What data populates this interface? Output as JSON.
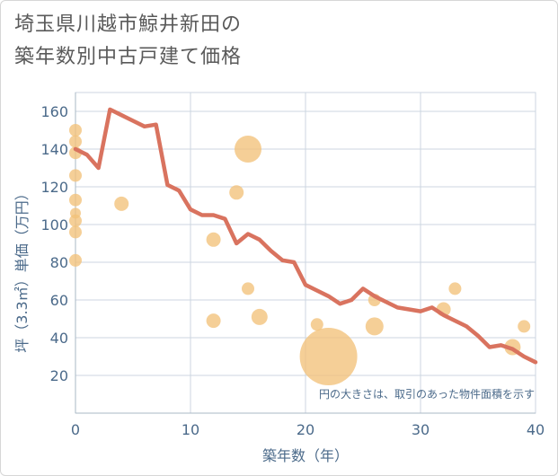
{
  "title_line1": "埼玉県川越市鯨井新田の",
  "title_line2": "築年数別中古戸建て価格",
  "chart_data": {
    "type": "scatter+line",
    "title": "埼玉県川越市鯨井新田の築年数別中古戸建て価格",
    "xlabel": "築年数（年）",
    "ylabel": "坪（3.3㎡）単価（万円）",
    "xlim": [
      0,
      40
    ],
    "ylim": [
      0,
      170
    ],
    "xticks": [
      0,
      10,
      20,
      30,
      40
    ],
    "yticks": [
      20,
      40,
      60,
      80,
      100,
      120,
      140,
      160
    ],
    "note": "円の大きさは、取引のあった物件面積を示す",
    "colors": {
      "line": "#d9735f",
      "bubble": "#f2c27a",
      "grid": "#ccd6e0",
      "text": "#4b6a8a"
    },
    "line": {
      "x": [
        0,
        1,
        2,
        3,
        4,
        5,
        6,
        7,
        8,
        9,
        10,
        11,
        12,
        13,
        14,
        15,
        16,
        17,
        18,
        19,
        20,
        21,
        22,
        23,
        24,
        25,
        26,
        27,
        28,
        29,
        30,
        31,
        32,
        33,
        34,
        35,
        36,
        37,
        38,
        39,
        40
      ],
      "y": [
        140,
        137,
        130,
        161,
        158,
        155,
        152,
        153,
        121,
        118,
        108,
        105,
        105,
        103,
        90,
        95,
        92,
        86,
        81,
        80,
        68,
        65,
        62,
        58,
        60,
        66,
        62,
        59,
        56,
        55,
        54,
        56,
        52,
        49,
        46,
        41,
        35,
        36,
        34,
        30,
        27
      ]
    },
    "bubbles": [
      {
        "x": 0,
        "y": 150,
        "r": 7
      },
      {
        "x": 0,
        "y": 144,
        "r": 7
      },
      {
        "x": 0,
        "y": 138,
        "r": 7
      },
      {
        "x": 0,
        "y": 126,
        "r": 7
      },
      {
        "x": 0,
        "y": 113,
        "r": 7
      },
      {
        "x": 0,
        "y": 106,
        "r": 6
      },
      {
        "x": 0,
        "y": 102,
        "r": 7
      },
      {
        "x": 0,
        "y": 96,
        "r": 7
      },
      {
        "x": 0,
        "y": 81,
        "r": 7
      },
      {
        "x": 4,
        "y": 111,
        "r": 8
      },
      {
        "x": 15,
        "y": 140,
        "r": 15
      },
      {
        "x": 14,
        "y": 117,
        "r": 8
      },
      {
        "x": 12,
        "y": 92,
        "r": 8
      },
      {
        "x": 15,
        "y": 66,
        "r": 7
      },
      {
        "x": 12,
        "y": 49,
        "r": 8
      },
      {
        "x": 16,
        "y": 51,
        "r": 9
      },
      {
        "x": 21,
        "y": 47,
        "r": 7
      },
      {
        "x": 22,
        "y": 30,
        "r": 32
      },
      {
        "x": 26,
        "y": 60,
        "r": 7
      },
      {
        "x": 26,
        "y": 46,
        "r": 10
      },
      {
        "x": 32,
        "y": 55,
        "r": 8
      },
      {
        "x": 33,
        "y": 66,
        "r": 7
      },
      {
        "x": 38,
        "y": 35,
        "r": 9
      },
      {
        "x": 39,
        "y": 46,
        "r": 7
      }
    ]
  }
}
